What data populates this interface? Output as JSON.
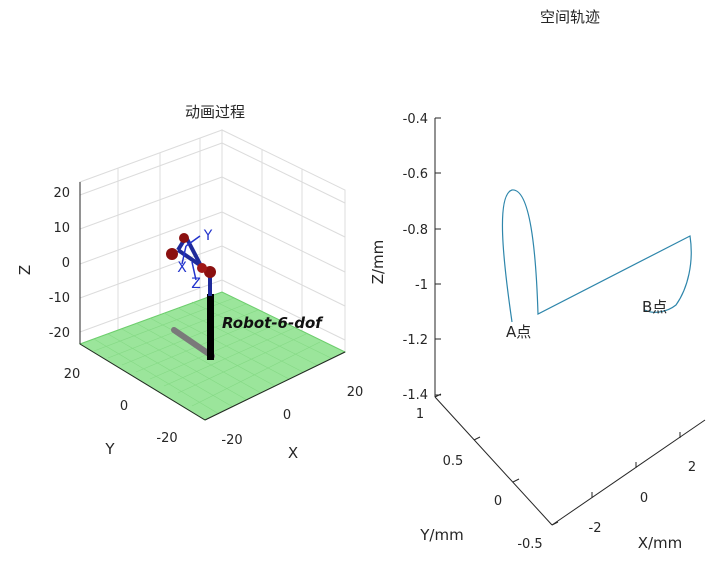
{
  "figure_title": "空间轨迹",
  "left_plot": {
    "title": "动画过程",
    "xlabel": "X",
    "ylabel": "Y",
    "zlabel": "Z",
    "z_ticks": [
      "20",
      "10",
      "0",
      "-10",
      "-20"
    ],
    "y_ticks": [
      "20",
      "0",
      "-20"
    ],
    "x_ticks": [
      "-20",
      "0",
      "20"
    ],
    "robot_label": "Robot-6-dof",
    "frame_labels": {
      "x": "X",
      "y": "Y",
      "z": "Z"
    },
    "colors": {
      "floor": "#9be59b",
      "link": "#1f2a9a",
      "joint": "#8b1010",
      "base": "#000000",
      "shadow": "#7a7a7a"
    }
  },
  "right_plot": {
    "xlabel": "X/mm",
    "ylabel": "Y/mm",
    "zlabel": "Z/mm",
    "z_ticks": [
      "-0.4",
      "-0.6",
      "-0.8",
      "-1",
      "-1.2",
      "-1.4"
    ],
    "y_ticks": [
      "1",
      "0.5",
      "0",
      "-0.5"
    ],
    "x_ticks": [
      "-2",
      "0",
      "2"
    ],
    "point_a": "A点",
    "point_b": "B点",
    "colors": {
      "trajectory": "#2e86ab"
    }
  }
}
